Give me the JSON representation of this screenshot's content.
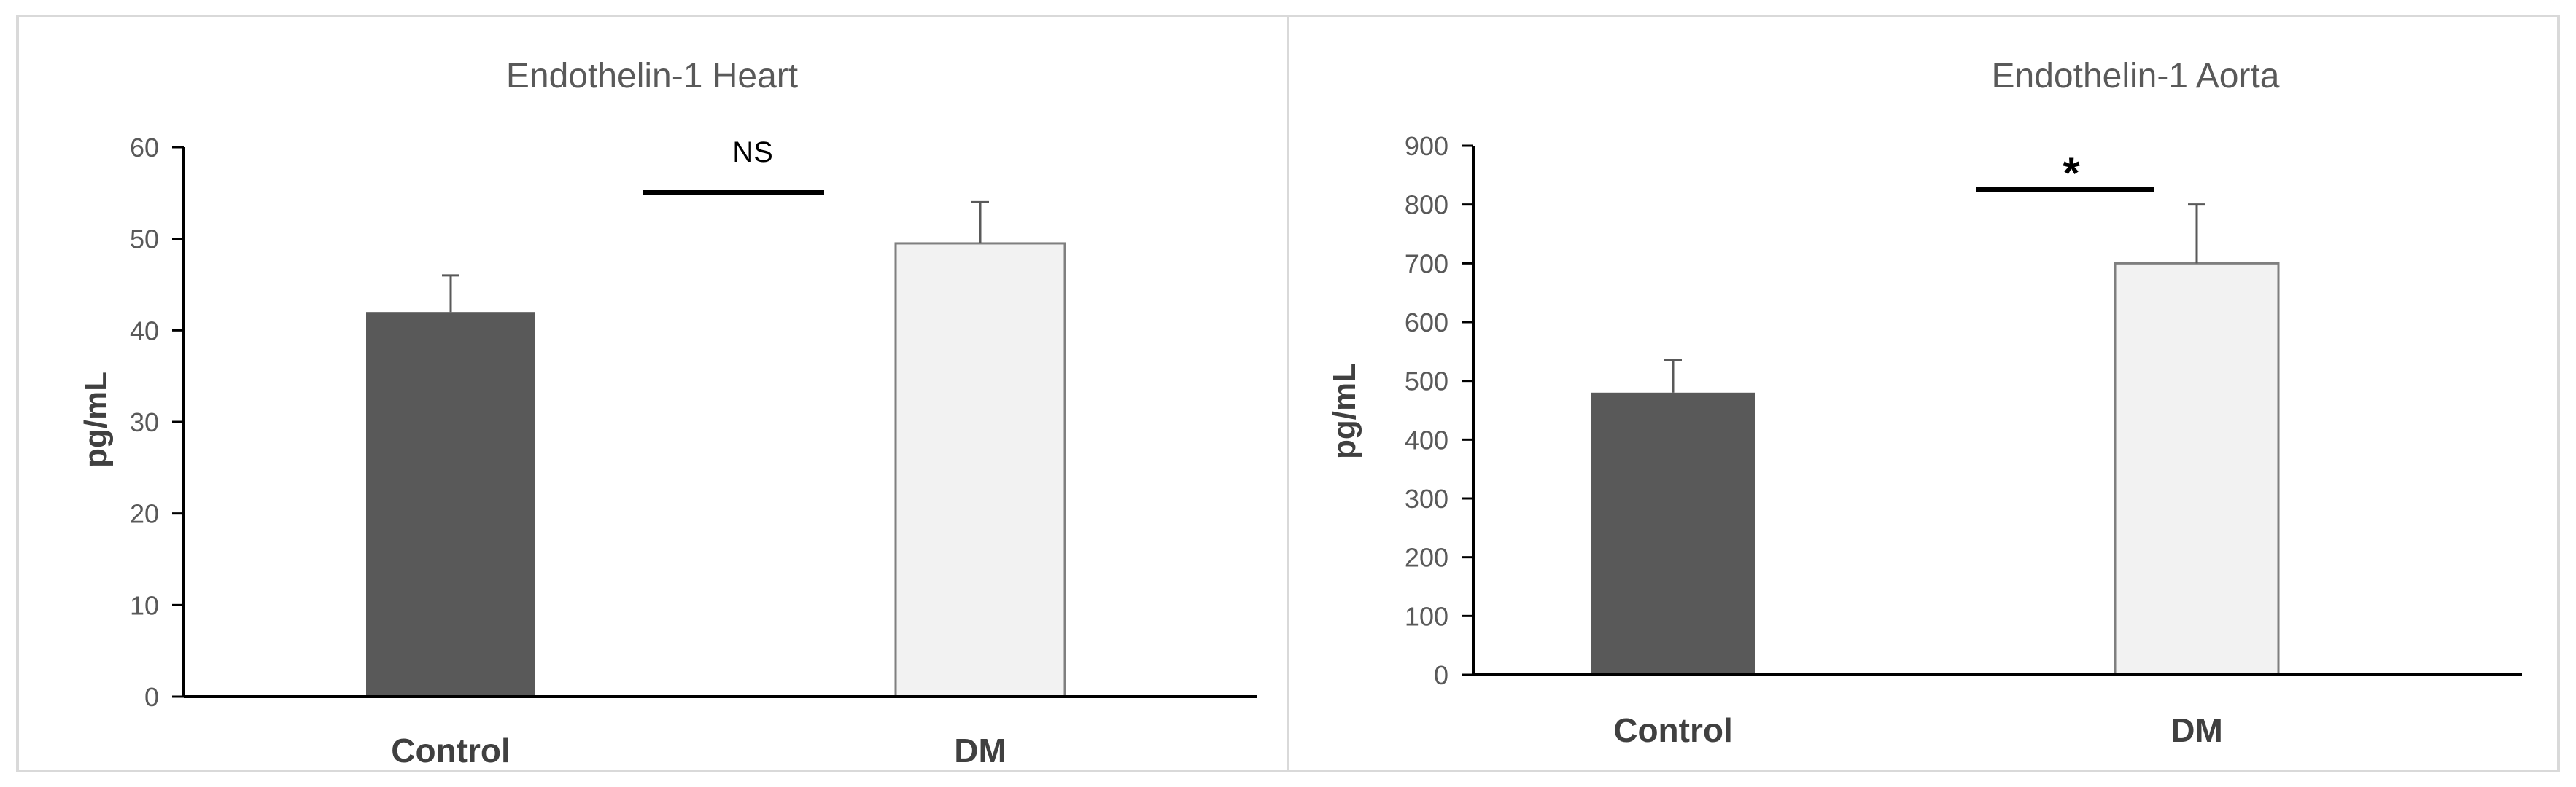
{
  "chart_data": [
    {
      "type": "bar",
      "title": "Endothelin-1 Heart",
      "ylabel": "pg/mL",
      "xlabel": "",
      "categories": [
        "Control",
        "DM"
      ],
      "values": [
        42,
        49.5
      ],
      "error": [
        4,
        4.5
      ],
      "ylim": [
        0,
        60
      ],
      "yticks": [
        0,
        10,
        20,
        30,
        40,
        50,
        60
      ],
      "significance": "NS",
      "grid": false,
      "bar_colors": [
        "#595959",
        "#f2f2f2"
      ]
    },
    {
      "type": "bar",
      "title": "Endothelin-1 Aorta",
      "ylabel": "pg/mL",
      "xlabel": "",
      "categories": [
        "Control",
        "DM"
      ],
      "values": [
        480,
        700
      ],
      "error": [
        55,
        100
      ],
      "ylim": [
        0,
        900
      ],
      "yticks": [
        0,
        100,
        200,
        300,
        400,
        500,
        600,
        700,
        800,
        900
      ],
      "significance": "*",
      "grid": false,
      "bar_colors": [
        "#595959",
        "#f2f2f2"
      ]
    }
  ],
  "colors": {
    "axis": "#000000",
    "tick_text": "#595959",
    "title_text": "#595959",
    "panel_border": "#d9d9d9"
  }
}
